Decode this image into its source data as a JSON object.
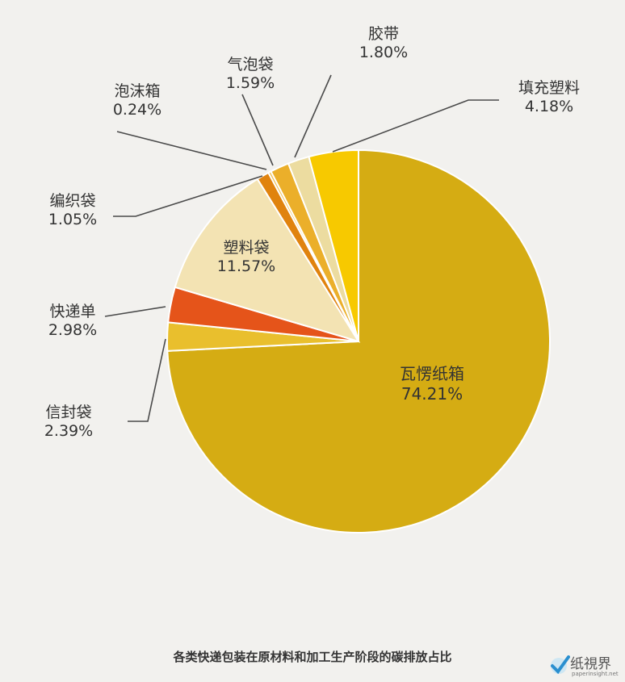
{
  "chart_data": {
    "type": "pie",
    "title": "各类快递包装在原材料和加工生产阶段的碳排放占比",
    "slices": [
      {
        "label": "瓦愣纸箱",
        "value": 74.21,
        "display": "74.21%",
        "color": "#d5ac13"
      },
      {
        "label": "信封袋",
        "value": 2.39,
        "display": "2.39%",
        "color": "#e9bf2d"
      },
      {
        "label": "快递单",
        "value": 2.98,
        "display": "2.98%",
        "color": "#e5541a"
      },
      {
        "label": "塑料袋",
        "value": 11.57,
        "display": "11.57%",
        "color": "#f3e3b3"
      },
      {
        "label": "编织袋",
        "value": 1.05,
        "display": "1.05%",
        "color": "#e0830e"
      },
      {
        "label": "泡沫箱",
        "value": 0.24,
        "display": "0.24%",
        "color": "#f0c25a"
      },
      {
        "label": "气泡袋",
        "value": 1.59,
        "display": "1.59%",
        "color": "#ebaf2a"
      },
      {
        "label": "胶带",
        "value": 1.8,
        "display": "1.80%",
        "color": "#ecdca0"
      },
      {
        "label": "填充塑料",
        "value": 4.18,
        "display": "4.18%",
        "color": "#f7c900"
      }
    ],
    "start": "12 o'clock",
    "direction": "clockwise"
  },
  "brand": {
    "name": "纸視界",
    "url": "paperinsight.net"
  }
}
